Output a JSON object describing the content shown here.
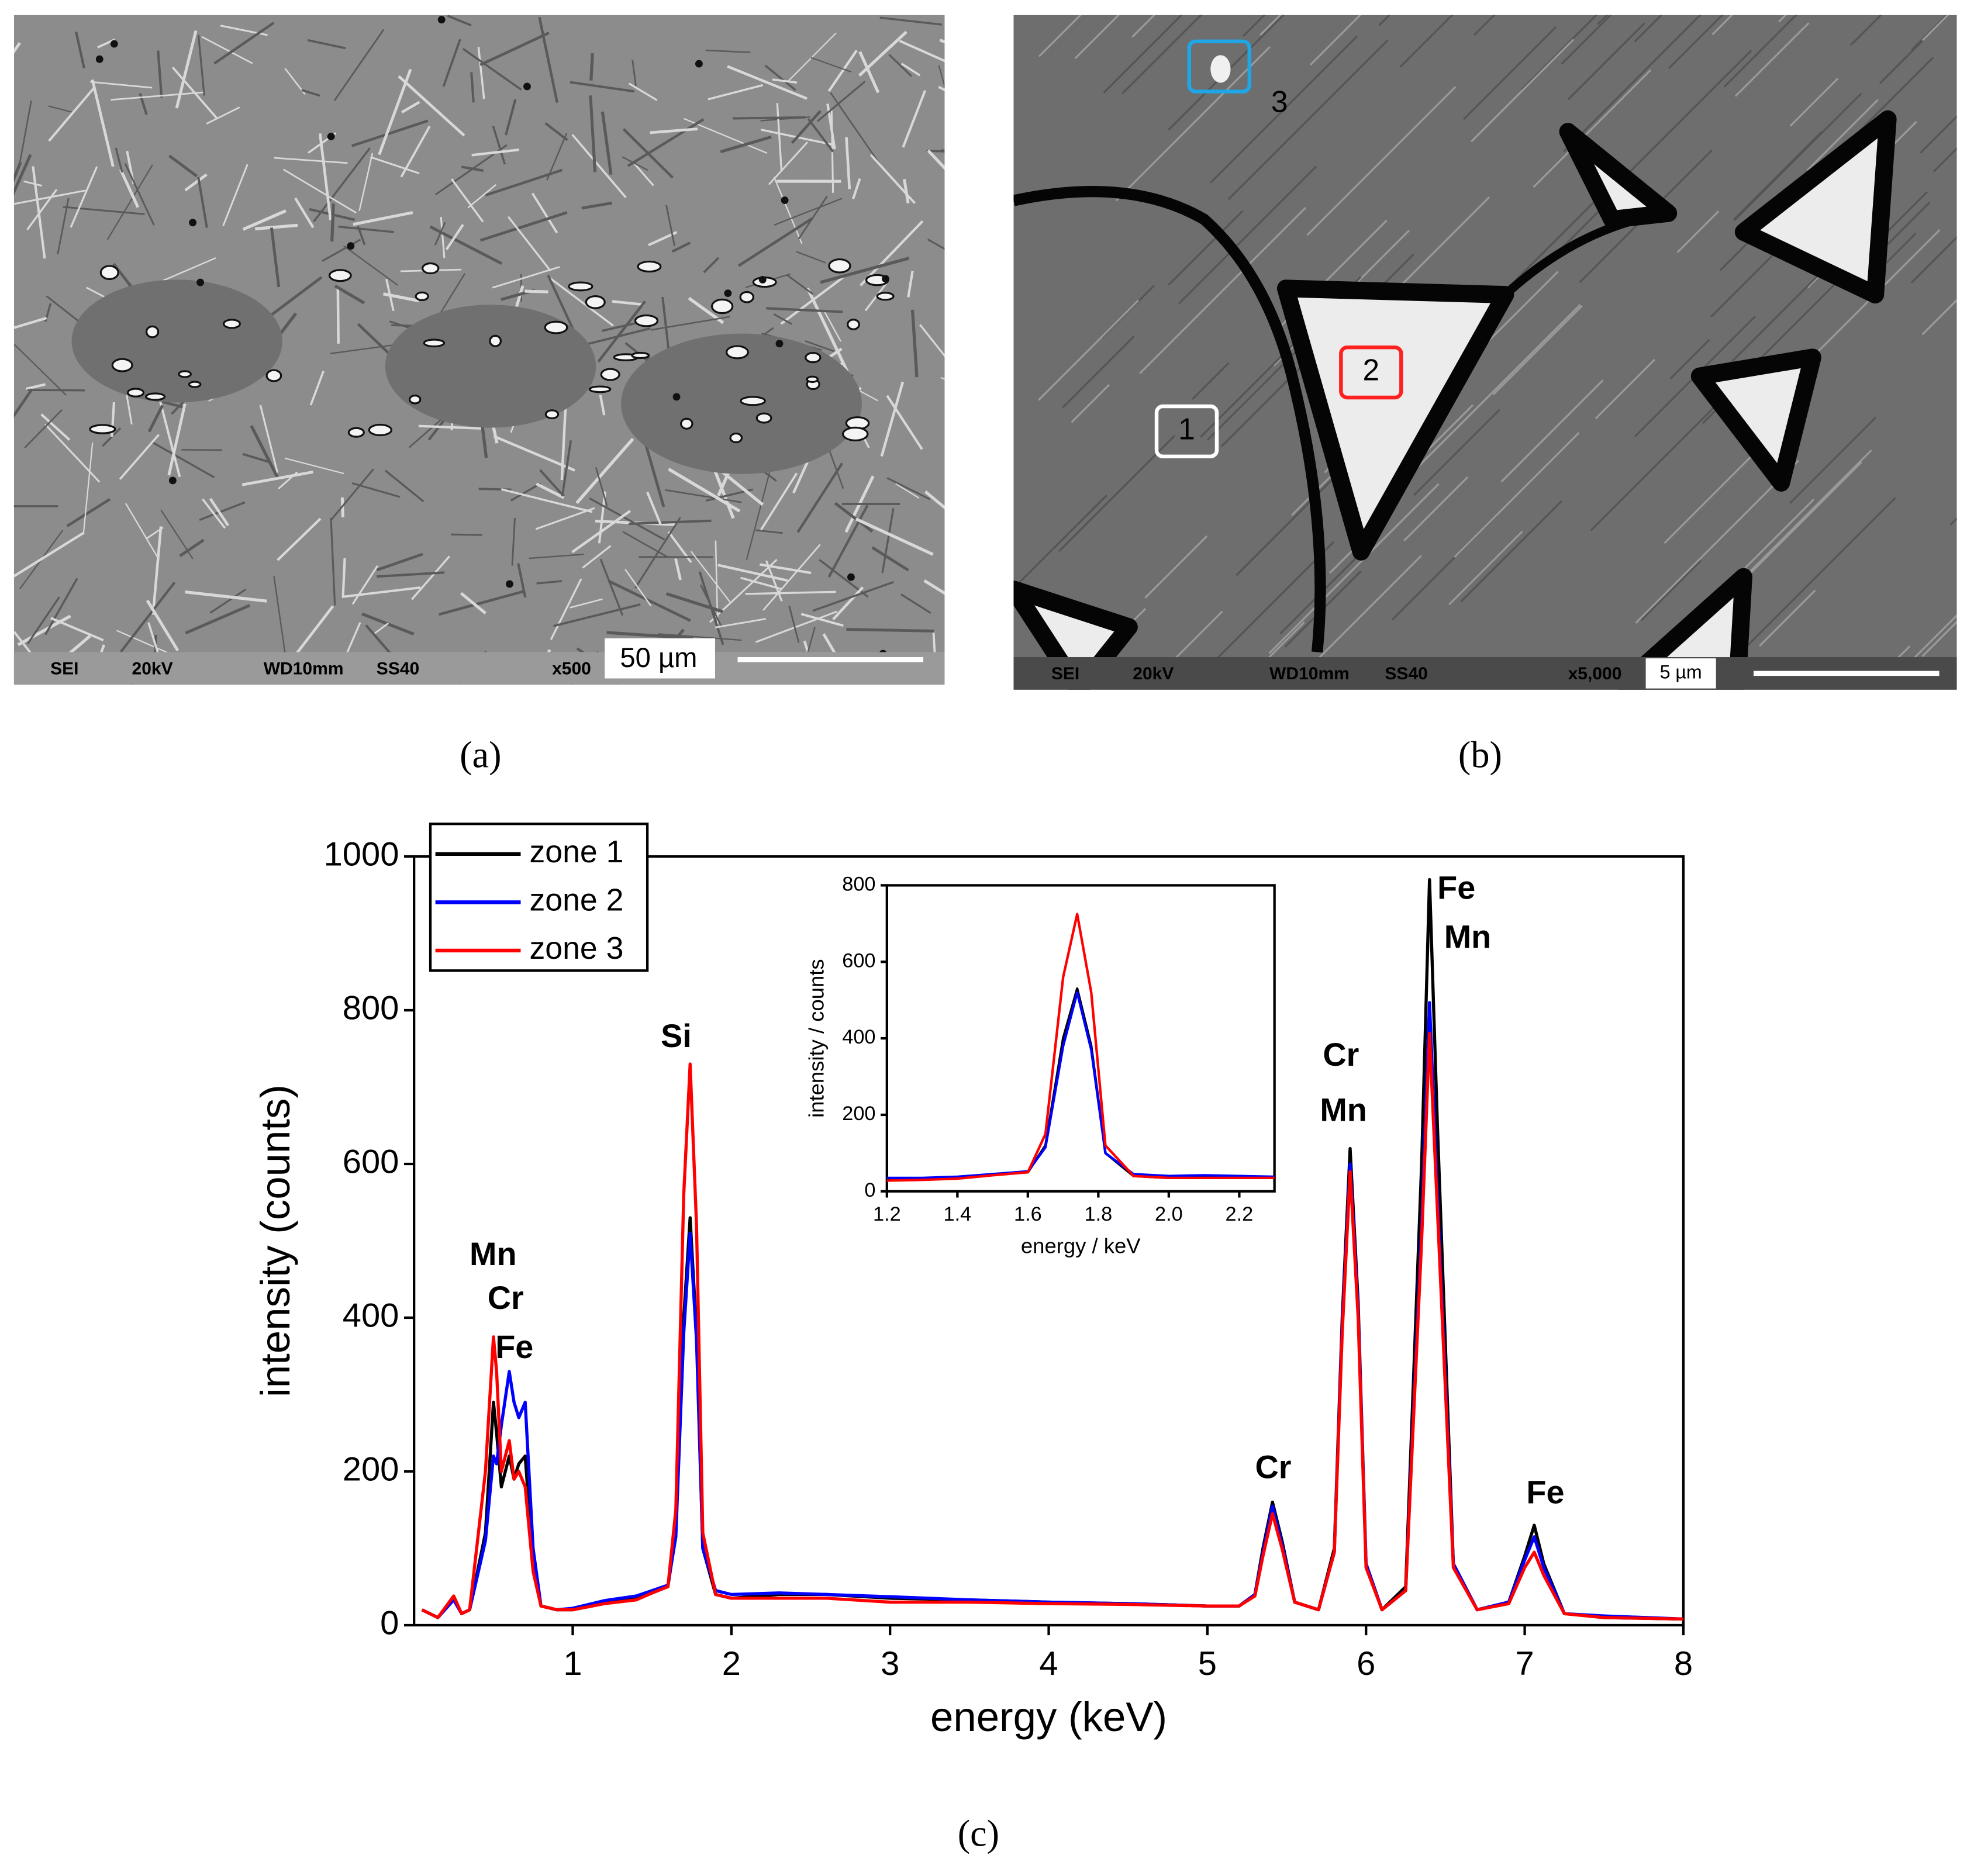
{
  "images": [
    {
      "caption": "(a)",
      "footer": [
        "SEI",
        "20kV",
        "WD10mm",
        "SS40",
        "x500"
      ],
      "scale_bar": "50 µm"
    },
    {
      "caption": "(b)",
      "footer": [
        "SEI",
        "20kV",
        "WD10mm",
        "SS40",
        "x5,000"
      ],
      "scale_bar": "5 µm",
      "markers": [
        "1",
        "2",
        "3"
      ]
    }
  ],
  "chart_data": [
    {
      "type": "line",
      "caption": "(c)",
      "x_label": "energy (keV)",
      "y_label": "intensity (counts)",
      "xlim": [
        0,
        8
      ],
      "ylim": [
        0,
        1000
      ],
      "xticks": [
        1,
        2,
        3,
        4,
        5,
        6,
        7,
        8
      ],
      "yticks": [
        0,
        200,
        400,
        600,
        800,
        1000
      ],
      "legend": "upper left",
      "annotations": [
        "Mn",
        "Cr",
        "Fe",
        "Si",
        "Cr",
        "Mn",
        "Cr",
        "Fe",
        "Mn",
        "Fe"
      ],
      "x": [
        0.05,
        0.15,
        0.25,
        0.3,
        0.35,
        0.45,
        0.5,
        0.52,
        0.55,
        0.6,
        0.63,
        0.66,
        0.7,
        0.75,
        0.8,
        0.9,
        1.0,
        1.2,
        1.4,
        1.5,
        1.6,
        1.65,
        1.7,
        1.74,
        1.78,
        1.82,
        1.9,
        2.0,
        2.3,
        2.6,
        3.0,
        3.5,
        4.0,
        4.5,
        5.0,
        5.2,
        5.3,
        5.35,
        5.41,
        5.47,
        5.55,
        5.7,
        5.8,
        5.85,
        5.9,
        5.95,
        6.0,
        6.1,
        6.25,
        6.35,
        6.4,
        6.45,
        6.55,
        6.7,
        6.9,
        7.0,
        7.06,
        7.12,
        7.25,
        7.5,
        8.0
      ],
      "series": [
        {
          "name": "zone 1",
          "color": "#000000",
          "values": [
            20,
            10,
            35,
            15,
            20,
            120,
            290,
            250,
            180,
            220,
            190,
            210,
            220,
            80,
            25,
            20,
            20,
            30,
            35,
            45,
            50,
            120,
            400,
            530,
            380,
            100,
            40,
            35,
            40,
            40,
            35,
            33,
            30,
            28,
            25,
            25,
            40,
            100,
            160,
            110,
            30,
            20,
            100,
            400,
            620,
            420,
            80,
            20,
            50,
            600,
            970,
            650,
            80,
            20,
            30,
            90,
            130,
            80,
            15,
            10,
            8
          ]
        },
        {
          "name": "zone 2",
          "color": "#0000ff",
          "values": [
            20,
            10,
            33,
            15,
            20,
            110,
            220,
            210,
            260,
            330,
            290,
            270,
            290,
            100,
            25,
            20,
            22,
            32,
            38,
            45,
            52,
            115,
            380,
            510,
            370,
            100,
            45,
            40,
            42,
            40,
            37,
            33,
            30,
            28,
            25,
            25,
            40,
            95,
            155,
            105,
            30,
            20,
            95,
            390,
            600,
            410,
            80,
            20,
            45,
            520,
            810,
            560,
            80,
            20,
            30,
            85,
            115,
            75,
            15,
            12,
            8
          ]
        },
        {
          "name": "zone 3",
          "color": "#ff0000",
          "values": [
            20,
            10,
            38,
            15,
            20,
            200,
            375,
            330,
            200,
            240,
            190,
            200,
            180,
            70,
            25,
            20,
            20,
            28,
            33,
            42,
            50,
            150,
            560,
            730,
            520,
            120,
            40,
            35,
            35,
            35,
            30,
            30,
            28,
            27,
            25,
            25,
            38,
            90,
            145,
            100,
            30,
            20,
            95,
            380,
            590,
            400,
            75,
            20,
            45,
            500,
            770,
            540,
            75,
            20,
            28,
            75,
            95,
            65,
            15,
            10,
            8
          ]
        }
      ]
    },
    {
      "type": "line",
      "x_label": "energy / keV",
      "y_label": "intensity / counts",
      "xlim": [
        1.2,
        2.3
      ],
      "ylim": [
        0,
        800
      ],
      "xticks": [
        {
          "value": 1.2,
          "label": "1.2"
        },
        {
          "value": 1.4,
          "label": "1.4"
        },
        {
          "value": 1.6,
          "label": "1.6"
        },
        {
          "value": 1.8,
          "label": "1.8"
        },
        {
          "value": 2.0,
          "label": "2.0"
        },
        {
          "value": 2.2,
          "label": "2.2"
        }
      ],
      "yticks": [
        0,
        200,
        400,
        600,
        800
      ],
      "x": [
        1.2,
        1.3,
        1.4,
        1.5,
        1.6,
        1.65,
        1.7,
        1.74,
        1.78,
        1.82,
        1.9,
        2.0,
        2.1,
        2.2,
        2.3
      ],
      "series": [
        {
          "color": "#000000",
          "values": [
            30,
            32,
            35,
            45,
            50,
            120,
            400,
            530,
            380,
            100,
            40,
            35,
            38,
            40,
            35
          ]
        },
        {
          "color": "#0000ff",
          "values": [
            35,
            35,
            38,
            45,
            52,
            115,
            380,
            520,
            370,
            100,
            45,
            40,
            42,
            40,
            38
          ]
        },
        {
          "color": "#ff0000",
          "values": [
            28,
            30,
            33,
            42,
            50,
            150,
            560,
            725,
            520,
            120,
            40,
            35,
            35,
            35,
            35
          ]
        }
      ]
    }
  ]
}
